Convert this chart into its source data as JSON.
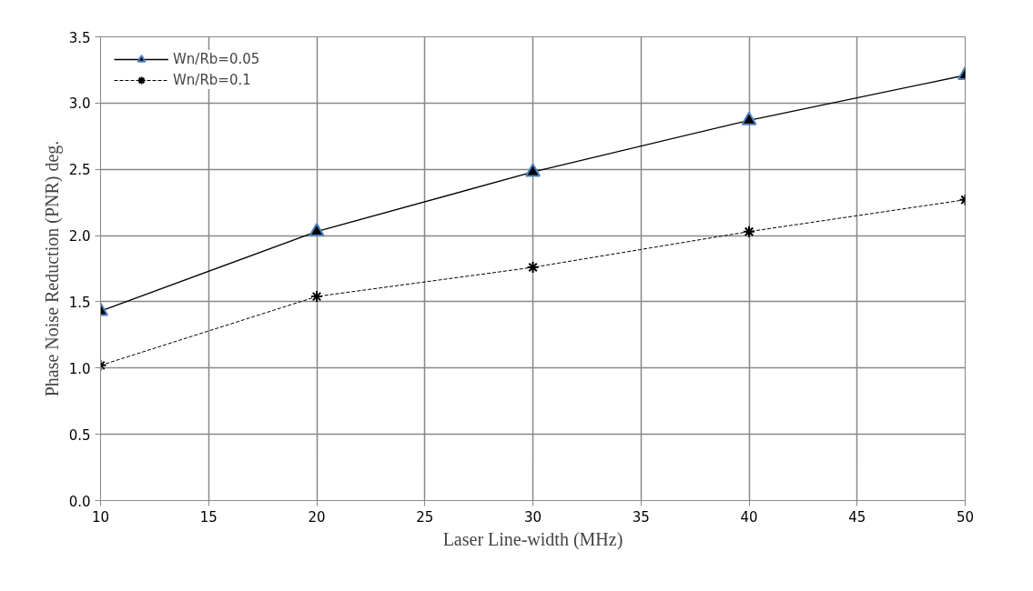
{
  "chart_data": {
    "type": "line",
    "xlabel": "Laser Line-width (MHz)",
    "ylabel": "Phase Noise Reduction (PNR) deg.",
    "x": [
      10,
      20,
      30,
      40,
      50
    ],
    "series": [
      {
        "name": "Wn/Rb=0.05",
        "color": "#000000",
        "values": [
          1.43,
          2.03,
          2.48,
          2.87,
          3.21
        ],
        "marker": "triangle",
        "line_style": "solid"
      },
      {
        "name": "Wn/Rb=0.1",
        "color": "#000000",
        "values": [
          1.02,
          1.54,
          1.76,
          2.03,
          2.27
        ],
        "marker": "cross",
        "line_style": "dashed"
      }
    ],
    "xlim": [
      10,
      50
    ],
    "xticks": [
      10,
      15,
      20,
      25,
      30,
      35,
      40,
      45,
      50
    ],
    "ylim": [
      0,
      3.5
    ],
    "yticks": [
      {
        "value": 0,
        "label": "0.0"
      },
      {
        "value": 0.5,
        "label": "0.5"
      },
      {
        "value": 1,
        "label": "1.0"
      },
      {
        "value": 1.5,
        "label": "1.5"
      },
      {
        "value": 2,
        "label": "2.0"
      },
      {
        "value": 2.5,
        "label": "2.5"
      },
      {
        "value": 3,
        "label": "3.0"
      },
      {
        "value": 3.5,
        "label": "3.5"
      }
    ],
    "grid": true,
    "legend": "top left"
  }
}
